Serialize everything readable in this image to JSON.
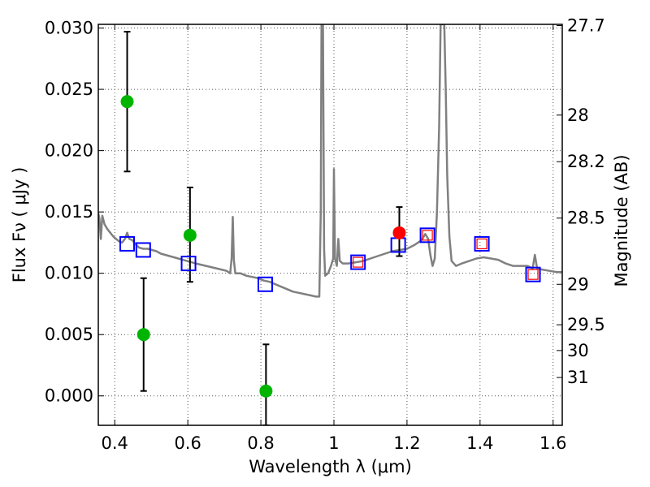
{
  "chart_data": {
    "type": "scatter",
    "xlabel": "Wavelength  λ (μm)",
    "ylabel": "Flux  Fν  ( μJy )",
    "y2label": "Magnitude (AB)",
    "xlim": [
      0.355,
      1.625
    ],
    "ylim": [
      -0.0024,
      0.0303
    ],
    "grid": true,
    "grid_style": "dotted",
    "x_ticks": [
      {
        "value": 0.4,
        "label": "0.4"
      },
      {
        "value": 0.6,
        "label": "0.6"
      },
      {
        "value": 0.8,
        "label": "0.8"
      },
      {
        "value": 1.0,
        "label": "1"
      },
      {
        "value": 1.2,
        "label": "1.2"
      },
      {
        "value": 1.4,
        "label": "1.4"
      },
      {
        "value": 1.6,
        "label": "1.6"
      }
    ],
    "y_ticks": [
      {
        "value": 0.0,
        "label": "0.000"
      },
      {
        "value": 0.005,
        "label": "0.005"
      },
      {
        "value": 0.01,
        "label": "0.010"
      },
      {
        "value": 0.015,
        "label": "0.015"
      },
      {
        "value": 0.02,
        "label": "0.020"
      },
      {
        "value": 0.025,
        "label": "0.025"
      },
      {
        "value": 0.03,
        "label": "0.030"
      }
    ],
    "y2_ticks": [
      {
        "flux": 0.0302,
        "label": "27.7"
      },
      {
        "flux": 0.0229,
        "label": "28"
      },
      {
        "flux": 0.0191,
        "label": "28.2"
      },
      {
        "flux": 0.0145,
        "label": "28.5"
      },
      {
        "flux": 0.0091,
        "label": "29"
      },
      {
        "flux": 0.0058,
        "label": "29.5"
      },
      {
        "flux": 0.0037,
        "label": "30"
      },
      {
        "flux": 0.0015,
        "label": "31"
      }
    ],
    "series": [
      {
        "kind": "line",
        "color": "#808080",
        "points": [
          [
            0.355,
            0.0149
          ],
          [
            0.358,
            0.0145
          ],
          [
            0.362,
            0.0128
          ],
          [
            0.366,
            0.0147
          ],
          [
            0.372,
            0.014
          ],
          [
            0.38,
            0.0136
          ],
          [
            0.388,
            0.0133
          ],
          [
            0.396,
            0.013
          ],
          [
            0.404,
            0.0128
          ],
          [
            0.412,
            0.0126
          ],
          [
            0.42,
            0.0125
          ],
          [
            0.428,
            0.0128
          ],
          [
            0.434,
            0.0133
          ],
          [
            0.44,
            0.0128
          ],
          [
            0.448,
            0.0127
          ],
          [
            0.456,
            0.0124
          ],
          [
            0.466,
            0.0121
          ],
          [
            0.478,
            0.012
          ],
          [
            0.49,
            0.012
          ],
          [
            0.502,
            0.0119
          ],
          [
            0.514,
            0.0118
          ],
          [
            0.526,
            0.0116
          ],
          [
            0.538,
            0.0115
          ],
          [
            0.55,
            0.0114
          ],
          [
            0.562,
            0.0113
          ],
          [
            0.574,
            0.0112
          ],
          [
            0.586,
            0.0111
          ],
          [
            0.598,
            0.011
          ],
          [
            0.61,
            0.0109
          ],
          [
            0.622,
            0.0108
          ],
          [
            0.636,
            0.0107
          ],
          [
            0.65,
            0.0106
          ],
          [
            0.664,
            0.0105
          ],
          [
            0.678,
            0.0104
          ],
          [
            0.692,
            0.0103
          ],
          [
            0.706,
            0.0102
          ],
          [
            0.716,
            0.01
          ],
          [
            0.72,
            0.0112
          ],
          [
            0.723,
            0.0146
          ],
          [
            0.726,
            0.0111
          ],
          [
            0.73,
            0.01
          ],
          [
            0.744,
            0.01
          ],
          [
            0.76,
            0.0098
          ],
          [
            0.776,
            0.0097
          ],
          [
            0.792,
            0.0096
          ],
          [
            0.808,
            0.0094
          ],
          [
            0.824,
            0.0093
          ],
          [
            0.84,
            0.0091
          ],
          [
            0.856,
            0.0089
          ],
          [
            0.872,
            0.0087
          ],
          [
            0.888,
            0.0085
          ],
          [
            0.904,
            0.0084
          ],
          [
            0.92,
            0.0083
          ],
          [
            0.936,
            0.0082
          ],
          [
            0.95,
            0.0081
          ],
          [
            0.96,
            0.0081
          ],
          [
            0.964,
            0.015
          ],
          [
            0.966,
            0.0303
          ],
          [
            0.97,
            0.0303
          ],
          [
            0.973,
            0.012
          ],
          [
            0.976,
            0.0098
          ],
          [
            0.984,
            0.01
          ],
          [
            0.992,
            0.0106
          ],
          [
            0.998,
            0.0112
          ],
          [
            1.0,
            0.0185
          ],
          [
            1.003,
            0.0112
          ],
          [
            1.008,
            0.0106
          ],
          [
            1.012,
            0.0128
          ],
          [
            1.016,
            0.011
          ],
          [
            1.024,
            0.0108
          ],
          [
            1.04,
            0.0108
          ],
          [
            1.06,
            0.0109
          ],
          [
            1.08,
            0.011
          ],
          [
            1.1,
            0.0112
          ],
          [
            1.12,
            0.0114
          ],
          [
            1.14,
            0.0116
          ],
          [
            1.16,
            0.0118
          ],
          [
            1.18,
            0.0119
          ],
          [
            1.2,
            0.012
          ],
          [
            1.22,
            0.0123
          ],
          [
            1.24,
            0.0127
          ],
          [
            1.25,
            0.0132
          ],
          [
            1.258,
            0.0128
          ],
          [
            1.264,
            0.0115
          ],
          [
            1.27,
            0.0106
          ],
          [
            1.276,
            0.0112
          ],
          [
            1.282,
            0.015
          ],
          [
            1.288,
            0.022
          ],
          [
            1.292,
            0.0303
          ],
          [
            1.302,
            0.0303
          ],
          [
            1.306,
            0.025
          ],
          [
            1.31,
            0.018
          ],
          [
            1.316,
            0.013
          ],
          [
            1.322,
            0.011
          ],
          [
            1.334,
            0.0106
          ],
          [
            1.35,
            0.0108
          ],
          [
            1.37,
            0.011
          ],
          [
            1.39,
            0.0112
          ],
          [
            1.41,
            0.0113
          ],
          [
            1.43,
            0.0112
          ],
          [
            1.45,
            0.0111
          ],
          [
            1.47,
            0.0108
          ],
          [
            1.49,
            0.0106
          ],
          [
            1.51,
            0.0106
          ],
          [
            1.53,
            0.0106
          ],
          [
            1.544,
            0.0104
          ],
          [
            1.55,
            0.0115
          ],
          [
            1.556,
            0.0104
          ],
          [
            1.57,
            0.0103
          ],
          [
            1.59,
            0.0102
          ],
          [
            1.61,
            0.0101
          ],
          [
            1.625,
            0.0101
          ]
        ]
      },
      {
        "kind": "errorbar",
        "color": "#000000",
        "points": [
          {
            "x": 0.434,
            "low": 0.0183,
            "high": 0.0297
          },
          {
            "x": 0.479,
            "low": 0.0004,
            "high": 0.0096
          },
          {
            "x": 0.606,
            "low": 0.0093,
            "high": 0.017
          },
          {
            "x": 0.814,
            "low": -0.0024,
            "high": 0.0042
          },
          {
            "x": 1.179,
            "low": 0.0114,
            "high": 0.0154
          }
        ]
      },
      {
        "kind": "open_square",
        "color": "#0000ff",
        "points": [
          [
            0.434,
            0.0124
          ],
          [
            0.478,
            0.0119
          ],
          [
            0.602,
            0.0108
          ],
          [
            0.812,
            0.0091
          ],
          [
            1.066,
            0.0109
          ],
          [
            1.176,
            0.0123
          ],
          [
            1.256,
            0.0131
          ],
          [
            1.405,
            0.0124
          ],
          [
            1.545,
            0.0099
          ]
        ]
      },
      {
        "kind": "open_square_small",
        "color": "#ff0000",
        "points": [
          [
            1.066,
            0.0109
          ],
          [
            1.256,
            0.0131
          ],
          [
            1.405,
            0.0124
          ],
          [
            1.545,
            0.0099
          ]
        ]
      },
      {
        "kind": "filled_circle",
        "color": "#00b400",
        "points": [
          [
            0.434,
            0.024
          ],
          [
            0.479,
            0.005
          ],
          [
            0.606,
            0.0131
          ],
          [
            0.814,
            0.0004
          ]
        ]
      },
      {
        "kind": "filled_circle",
        "color": "#ff0000",
        "points": [
          [
            1.179,
            0.0133
          ]
        ]
      }
    ]
  }
}
